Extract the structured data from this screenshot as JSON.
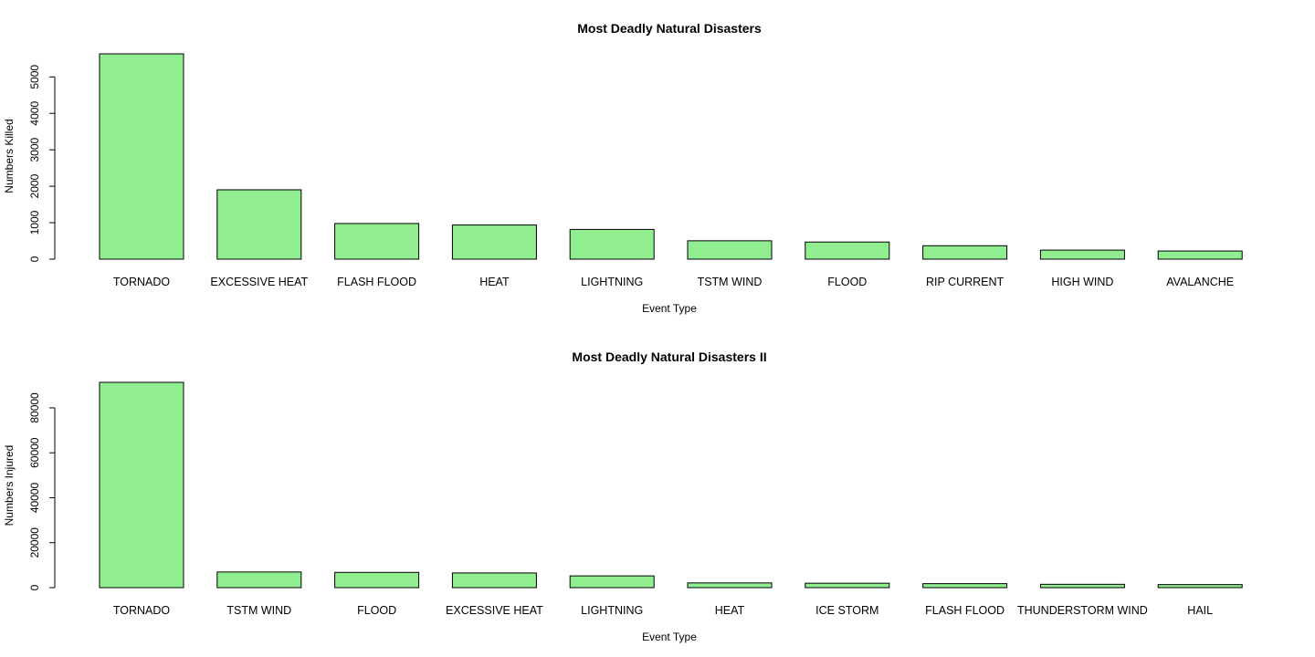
{
  "chart_data": [
    {
      "type": "bar",
      "title": "Most Deadly Natural Disasters",
      "xlabel": "Event Type",
      "ylabel": "Numbers Killed",
      "categories": [
        "TORNADO",
        "EXCESSIVE HEAT",
        "FLASH FLOOD",
        "HEAT",
        "LIGHTNING",
        "TSTM WIND",
        "FLOOD",
        "RIP CURRENT",
        "HIGH WIND",
        "AVALANCHE"
      ],
      "values": [
        5633,
        1903,
        978,
        937,
        816,
        504,
        470,
        368,
        248,
        224
      ],
      "yticks": [
        0,
        1000,
        2000,
        3000,
        4000,
        5000
      ],
      "ylim": [
        0,
        5633
      ],
      "bar_color": "#90EE90",
      "grid": false
    },
    {
      "type": "bar",
      "title": "Most Deadly Natural Disasters II",
      "xlabel": "Event Type",
      "ylabel": "Numbers Injured",
      "categories": [
        "TORNADO",
        "TSTM WIND",
        "FLOOD",
        "EXCESSIVE HEAT",
        "LIGHTNING",
        "HEAT",
        "ICE STORM",
        "FLASH FLOOD",
        "THUNDERSTORM WIND",
        "HAIL"
      ],
      "values": [
        91346,
        6957,
        6789,
        6525,
        5230,
        2100,
        1975,
        1777,
        1488,
        1361
      ],
      "yticks": [
        0,
        20000,
        40000,
        60000,
        80000
      ],
      "ylim": [
        0,
        91346
      ],
      "bar_color": "#90EE90",
      "grid": false
    }
  ]
}
